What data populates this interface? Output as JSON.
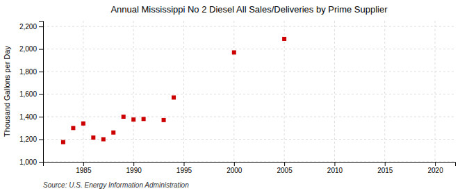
{
  "chart_data": {
    "type": "scatter",
    "title": "Annual Mississippi No 2 Diesel All Sales/Deliveries by Prime Supplier",
    "ylabel": "Thousand Gallons per Day",
    "source": "Source: U.S. Energy Information Administration",
    "x": [
      1983,
      1984,
      1985,
      1986,
      1987,
      1988,
      1989,
      1990,
      1991,
      1993,
      1994,
      2000,
      2005
    ],
    "values": [
      1175,
      1300,
      1340,
      1215,
      1200,
      1260,
      1400,
      1375,
      1380,
      1370,
      1570,
      1970,
      2090
    ],
    "color": "#cc0000",
    "marker": "square",
    "xlim": [
      1981,
      2022
    ],
    "ylim": [
      1000,
      2250
    ],
    "xticks": [
      1985,
      1990,
      1995,
      2000,
      2005,
      2010,
      2015,
      2020
    ],
    "yticks": [
      {
        "value": 1000,
        "label": "1,000"
      },
      {
        "value": 1200,
        "label": "1,200"
      },
      {
        "value": 1400,
        "label": "1,400"
      },
      {
        "value": 1600,
        "label": "1,600"
      },
      {
        "value": 1800,
        "label": "1,800"
      },
      {
        "value": 2000,
        "label": "2,000"
      },
      {
        "value": 2200,
        "label": "2,200"
      }
    ],
    "grid": true
  }
}
